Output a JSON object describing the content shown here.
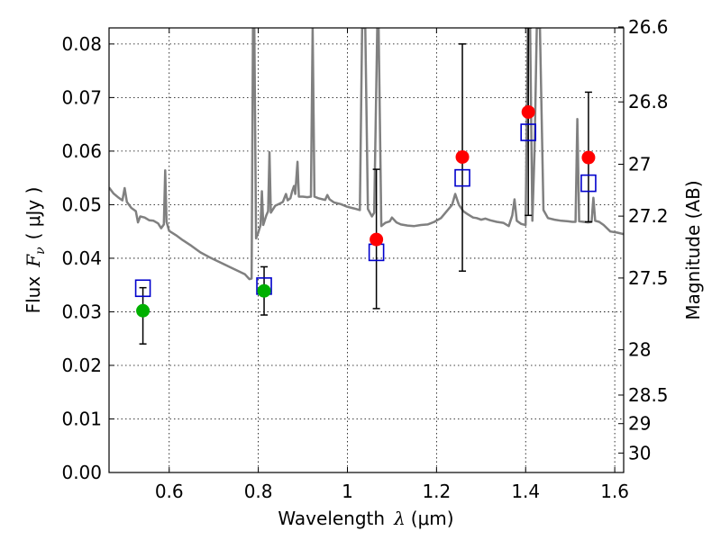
{
  "chart_data": {
    "type": "scatter",
    "xlabel_prefix": "Wavelength",
    "xlabel_symbol": "λ",
    "xlabel_unit": "(μm)",
    "ylabel_prefix": "Flux",
    "ylabel_symbol": "F",
    "ylabel_subscript": "ν",
    "ylabel_unit": "( μJy )",
    "ylabel_right": "Magnitude (AB)",
    "xlim": [
      0.465,
      1.62
    ],
    "ylim": [
      0.0,
      0.083
    ],
    "xticks": [
      0.6,
      0.8,
      1.0,
      1.2,
      1.4,
      1.6
    ],
    "xtick_labels": [
      "0.6",
      "0.8",
      "1",
      "1.2",
      "1.4",
      "1.6"
    ],
    "yticks": [
      0.0,
      0.01,
      0.02,
      0.03,
      0.04,
      0.05,
      0.06,
      0.07,
      0.08
    ],
    "ytick_labels": [
      "0.00",
      "0.01",
      "0.02",
      "0.03",
      "0.04",
      "0.05",
      "0.06",
      "0.07",
      "0.08"
    ],
    "right_ticks": [
      {
        "label": "26.6",
        "mag": 26.6
      },
      {
        "label": "26.8",
        "mag": 26.8
      },
      {
        "label": "27",
        "mag": 27.0
      },
      {
        "label": "27.2",
        "mag": 27.2
      },
      {
        "label": "27.5",
        "mag": 27.5
      },
      {
        "label": "28",
        "mag": 28.0
      },
      {
        "label": "28.5",
        "mag": 28.5
      },
      {
        "label": "29",
        "mag": 29.0
      },
      {
        "label": "30",
        "mag": 30.0
      }
    ],
    "grid": true,
    "colors": {
      "spectrum": "#808080",
      "model": "#0000cc",
      "red_points": "#ff0000",
      "green_points": "#00b000",
      "errorbar": "#000000"
    },
    "series": [
      {
        "kind": "model-spectrum",
        "points": [
          [
            0.465,
            0.0532
          ],
          [
            0.475,
            0.0521
          ],
          [
            0.485,
            0.0514
          ],
          [
            0.495,
            0.0508
          ],
          [
            0.5,
            0.0531
          ],
          [
            0.505,
            0.0505
          ],
          [
            0.515,
            0.0494
          ],
          [
            0.525,
            0.0488
          ],
          [
            0.53,
            0.0467
          ],
          [
            0.535,
            0.0478
          ],
          [
            0.545,
            0.0476
          ],
          [
            0.555,
            0.0471
          ],
          [
            0.565,
            0.047
          ],
          [
            0.575,
            0.0465
          ],
          [
            0.582,
            0.0456
          ],
          [
            0.588,
            0.0463
          ],
          [
            0.591,
            0.0564
          ],
          [
            0.594,
            0.0468
          ],
          [
            0.6,
            0.0451
          ],
          [
            0.615,
            0.0443
          ],
          [
            0.63,
            0.0434
          ],
          [
            0.65,
            0.0423
          ],
          [
            0.67,
            0.0411
          ],
          [
            0.69,
            0.0402
          ],
          [
            0.71,
            0.0394
          ],
          [
            0.73,
            0.0386
          ],
          [
            0.75,
            0.0378
          ],
          [
            0.77,
            0.037
          ],
          [
            0.78,
            0.0361
          ],
          [
            0.785,
            0.0362
          ],
          [
            0.788,
            0.083
          ],
          [
            0.791,
            0.083
          ],
          [
            0.795,
            0.0437
          ],
          [
            0.8,
            0.0448
          ],
          [
            0.805,
            0.0462
          ],
          [
            0.808,
            0.0525
          ],
          [
            0.811,
            0.0462
          ],
          [
            0.818,
            0.048
          ],
          [
            0.822,
            0.0488
          ],
          [
            0.825,
            0.0598
          ],
          [
            0.828,
            0.0485
          ],
          [
            0.838,
            0.0498
          ],
          [
            0.848,
            0.0502
          ],
          [
            0.855,
            0.0505
          ],
          [
            0.862,
            0.052
          ],
          [
            0.866,
            0.0508
          ],
          [
            0.872,
            0.0512
          ],
          [
            0.876,
            0.0525
          ],
          [
            0.88,
            0.0535
          ],
          [
            0.883,
            0.052
          ],
          [
            0.888,
            0.058
          ],
          [
            0.891,
            0.0515
          ],
          [
            0.9,
            0.0515
          ],
          [
            0.91,
            0.0514
          ],
          [
            0.918,
            0.0515
          ],
          [
            0.922,
            0.083
          ],
          [
            0.926,
            0.0515
          ],
          [
            0.935,
            0.0512
          ],
          [
            0.95,
            0.0509
          ],
          [
            0.955,
            0.0518
          ],
          [
            0.96,
            0.051
          ],
          [
            0.97,
            0.0504
          ],
          [
            0.985,
            0.0501
          ],
          [
            1.0,
            0.0496
          ],
          [
            1.015,
            0.0493
          ],
          [
            1.028,
            0.049
          ],
          [
            1.033,
            0.083
          ],
          [
            1.04,
            0.083
          ],
          [
            1.046,
            0.0492
          ],
          [
            1.055,
            0.0478
          ],
          [
            1.06,
            0.0485
          ],
          [
            1.067,
            0.083
          ],
          [
            1.07,
            0.083
          ],
          [
            1.076,
            0.046
          ],
          [
            1.085,
            0.0466
          ],
          [
            1.095,
            0.0469
          ],
          [
            1.1,
            0.0476
          ],
          [
            1.11,
            0.0467
          ],
          [
            1.12,
            0.0463
          ],
          [
            1.135,
            0.0461
          ],
          [
            1.15,
            0.046
          ],
          [
            1.165,
            0.0462
          ],
          [
            1.18,
            0.0463
          ],
          [
            1.195,
            0.0468
          ],
          [
            1.21,
            0.0475
          ],
          [
            1.225,
            0.049
          ],
          [
            1.235,
            0.05
          ],
          [
            1.242,
            0.052
          ],
          [
            1.25,
            0.05
          ],
          [
            1.26,
            0.0488
          ],
          [
            1.27,
            0.0482
          ],
          [
            1.282,
            0.0476
          ],
          [
            1.29,
            0.0475
          ],
          [
            1.3,
            0.0472
          ],
          [
            1.31,
            0.0474
          ],
          [
            1.32,
            0.0471
          ],
          [
            1.335,
            0.0468
          ],
          [
            1.35,
            0.0466
          ],
          [
            1.362,
            0.046
          ],
          [
            1.37,
            0.048
          ],
          [
            1.375,
            0.051
          ],
          [
            1.38,
            0.047
          ],
          [
            1.39,
            0.0464
          ],
          [
            1.4,
            0.0462
          ],
          [
            1.405,
            0.083
          ],
          [
            1.41,
            0.083
          ],
          [
            1.415,
            0.047
          ],
          [
            1.42,
            0.06
          ],
          [
            1.425,
            0.083
          ],
          [
            1.432,
            0.083
          ],
          [
            1.44,
            0.049
          ],
          [
            1.45,
            0.0475
          ],
          [
            1.465,
            0.0472
          ],
          [
            1.48,
            0.047
          ],
          [
            1.495,
            0.0469
          ],
          [
            1.505,
            0.0468
          ],
          [
            1.512,
            0.0468
          ],
          [
            1.516,
            0.066
          ],
          [
            1.52,
            0.0469
          ],
          [
            1.53,
            0.0468
          ],
          [
            1.54,
            0.0467
          ],
          [
            1.548,
            0.0468
          ],
          [
            1.552,
            0.0513
          ],
          [
            1.556,
            0.047
          ],
          [
            1.565,
            0.0468
          ],
          [
            1.575,
            0.0462
          ],
          [
            1.59,
            0.045
          ],
          [
            1.605,
            0.0448
          ],
          [
            1.62,
            0.0445
          ]
        ]
      },
      {
        "kind": "errorbars",
        "points": [
          {
            "x": 0.541,
            "low": 0.024,
            "high": 0.0345
          },
          {
            "x": 0.813,
            "low": 0.0294,
            "high": 0.0384
          },
          {
            "x": 1.065,
            "low": 0.0306,
            "high": 0.0566
          },
          {
            "x": 1.258,
            "low": 0.0376,
            "high": 0.08
          },
          {
            "x": 1.406,
            "low": 0.048,
            "high": 0.083
          },
          {
            "x": 1.541,
            "low": 0.0468,
            "high": 0.071
          }
        ]
      },
      {
        "kind": "model-bandpass",
        "marker": "open-square",
        "points": [
          {
            "x": 0.541,
            "y": 0.0344
          },
          {
            "x": 0.813,
            "y": 0.0348
          },
          {
            "x": 1.065,
            "y": 0.0411
          },
          {
            "x": 1.258,
            "y": 0.055
          },
          {
            "x": 1.406,
            "y": 0.0635
          },
          {
            "x": 1.541,
            "y": 0.054
          }
        ]
      },
      {
        "kind": "observed-green",
        "marker": "filled-circle",
        "points": [
          {
            "x": 0.541,
            "y": 0.0302
          },
          {
            "x": 0.813,
            "y": 0.0339
          }
        ]
      },
      {
        "kind": "observed-red",
        "marker": "filled-circle",
        "points": [
          {
            "x": 1.065,
            "y": 0.0435
          },
          {
            "x": 1.258,
            "y": 0.0589
          },
          {
            "x": 1.406,
            "y": 0.0673
          },
          {
            "x": 1.541,
            "y": 0.0588
          }
        ]
      }
    ]
  }
}
